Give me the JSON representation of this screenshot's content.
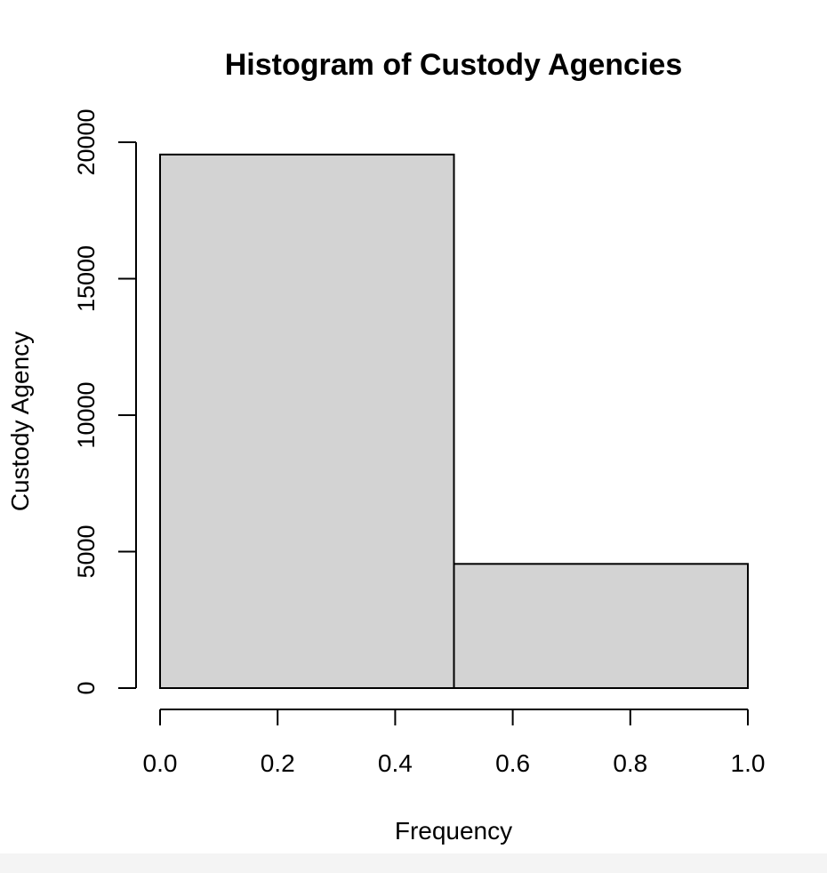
{
  "chart_data": {
    "type": "histogram",
    "title": "Histogram of Custody Agencies",
    "xlabel": "Frequency",
    "ylabel": "Custody Agency",
    "xlim": [
      0.0,
      1.0
    ],
    "ylim": [
      0,
      20000
    ],
    "bins": [
      {
        "x0": 0.0,
        "x1": 0.5,
        "count": 19550
      },
      {
        "x0": 0.5,
        "x1": 1.0,
        "count": 4550
      }
    ],
    "x_ticks": [
      {
        "value": 0.0,
        "label": "0.0"
      },
      {
        "value": 0.2,
        "label": "0.2"
      },
      {
        "value": 0.4,
        "label": "0.4"
      },
      {
        "value": 0.6,
        "label": "0.6"
      },
      {
        "value": 0.8,
        "label": "0.8"
      },
      {
        "value": 1.0,
        "label": "1.0"
      }
    ],
    "y_ticks": [
      {
        "value": 0,
        "label": "0"
      },
      {
        "value": 5000,
        "label": "5000"
      },
      {
        "value": 10000,
        "label": "10000"
      },
      {
        "value": 15000,
        "label": "15000"
      },
      {
        "value": 20000,
        "label": "20000"
      }
    ],
    "grid": false,
    "colors": {
      "bar_fill": "#d3d3d3",
      "bar_stroke": "#000000",
      "axis": "#000000"
    }
  }
}
